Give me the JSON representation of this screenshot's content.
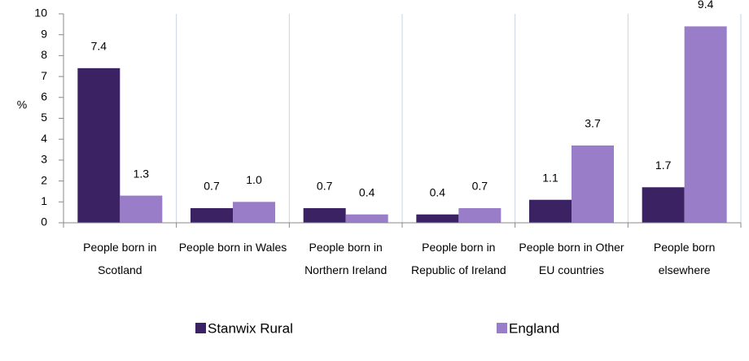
{
  "chart_data": {
    "type": "bar",
    "y_label": "%",
    "categories": [
      "People born in Scotland",
      "People born in Wales",
      "People born in Northern Ireland",
      "People born in Republic of Ireland",
      "People born in Other EU countries",
      "People born elsewhere"
    ],
    "series": [
      {
        "name": "Stanwix Rural",
        "color": "#3b2363",
        "values": [
          7.4,
          0.7,
          0.7,
          0.4,
          1.1,
          1.7
        ],
        "value_labels": [
          "7.4",
          "0.7",
          "0.7",
          "0.4",
          "1.1",
          "1.7"
        ]
      },
      {
        "name": "England",
        "color": "#997dc8",
        "values": [
          1.3,
          1.0,
          0.4,
          0.7,
          3.7,
          9.4
        ],
        "value_labels": [
          "1.3",
          "1.0",
          "0.4",
          "0.7",
          "3.7",
          "9.4"
        ]
      }
    ],
    "ylim": [
      0,
      10
    ],
    "yticks": [
      0,
      1,
      2,
      3,
      4,
      5,
      6,
      7,
      8,
      9,
      10
    ],
    "grid": true,
    "legend": "bottom"
  }
}
